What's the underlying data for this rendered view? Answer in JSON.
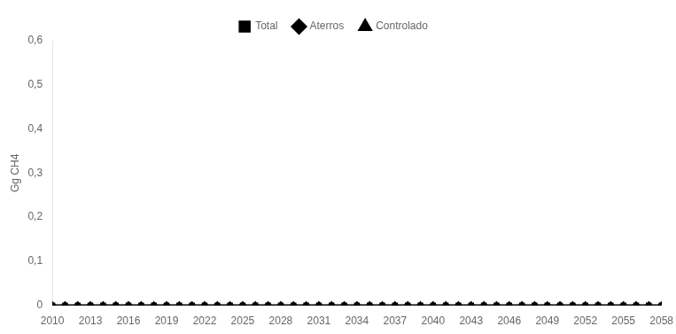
{
  "chart_data": {
    "type": "line",
    "x": [
      2010,
      2011,
      2012,
      2013,
      2014,
      2015,
      2016,
      2017,
      2018,
      2019,
      2020,
      2021,
      2022,
      2023,
      2024,
      2025,
      2026,
      2027,
      2028,
      2029,
      2030,
      2031,
      2032,
      2033,
      2034,
      2035,
      2036,
      2037,
      2038,
      2039,
      2040,
      2041,
      2042,
      2043,
      2044,
      2045,
      2046,
      2047,
      2048,
      2049,
      2050,
      2051,
      2052,
      2053,
      2054,
      2055,
      2056,
      2057,
      2058
    ],
    "series": [
      {
        "name": "Total",
        "color": "#000000",
        "marker": "square",
        "values": [
          0,
          0,
          0,
          0,
          0,
          0,
          0,
          0,
          0,
          0,
          0,
          0,
          0,
          0,
          0,
          0,
          0,
          0,
          0,
          0,
          0,
          0,
          0,
          0,
          0,
          0,
          0,
          0,
          0,
          0,
          0,
          0,
          0,
          0,
          0,
          0,
          0,
          0,
          0,
          0,
          0,
          0,
          0,
          0,
          0,
          0,
          0,
          0,
          0
        ]
      },
      {
        "name": "Aterros",
        "color": "#000000",
        "marker": "diamond",
        "values": [
          0,
          0,
          0,
          0,
          0,
          0,
          0,
          0,
          0,
          0,
          0,
          0,
          0,
          0,
          0,
          0,
          0,
          0,
          0,
          0,
          0,
          0,
          0,
          0,
          0,
          0,
          0,
          0,
          0,
          0,
          0,
          0,
          0,
          0,
          0,
          0,
          0,
          0,
          0,
          0,
          0,
          0,
          0,
          0,
          0,
          0,
          0,
          0,
          0
        ]
      },
      {
        "name": "Controlado",
        "color": "#000000",
        "marker": "triangle",
        "values": [
          0,
          0,
          0,
          0,
          0,
          0,
          0,
          0,
          0,
          0,
          0,
          0,
          0,
          0,
          0,
          0,
          0,
          0,
          0,
          0,
          0,
          0,
          0,
          0,
          0,
          0,
          0,
          0,
          0,
          0,
          0,
          0,
          0,
          0,
          0,
          0,
          0,
          0,
          0,
          0,
          0,
          0,
          0,
          0,
          0,
          0,
          0,
          0,
          0
        ]
      }
    ],
    "xlim": [
      2010,
      2058
    ],
    "xticks": [
      2010,
      2013,
      2016,
      2019,
      2022,
      2025,
      2028,
      2031,
      2034,
      2037,
      2040,
      2043,
      2046,
      2049,
      2052,
      2055,
      2058
    ],
    "ylim": [
      0,
      0.6
    ],
    "yticks": [
      0,
      {
        "value": 0.1,
        "label": "0,1"
      },
      {
        "value": 0.2,
        "label": "0,2"
      },
      {
        "value": 0.3,
        "label": "0,3"
      },
      {
        "value": 0.4,
        "label": "0,4"
      },
      {
        "value": 0.5,
        "label": "0,5"
      },
      {
        "value": 0.6,
        "label": "0,6"
      }
    ],
    "ylabel": "Gg CH4",
    "grid": false,
    "legend": "top"
  }
}
